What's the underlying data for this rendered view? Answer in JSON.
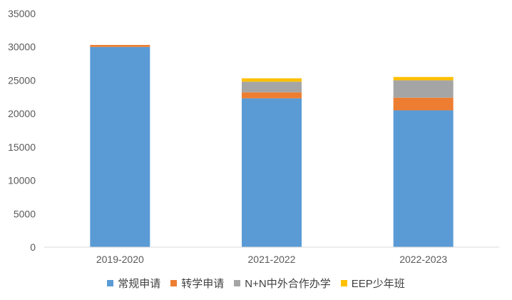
{
  "chart_data": {
    "type": "bar",
    "stacked": true,
    "categories": [
      "2019-2020",
      "2021-2022",
      "2022-2023"
    ],
    "series": [
      {
        "name": "常规申请",
        "color": "#5B9BD5",
        "values": [
          30000,
          22300,
          20500
        ]
      },
      {
        "name": "转学申请",
        "color": "#ED7D31",
        "values": [
          300,
          900,
          1900
        ]
      },
      {
        "name": "N+N中外合作办学",
        "color": "#A5A5A5",
        "values": [
          0,
          1600,
          2600
        ]
      },
      {
        "name": "EEP少年班",
        "color": "#FFC000",
        "values": [
          0,
          500,
          500
        ]
      }
    ],
    "ylim": [
      0,
      35000
    ],
    "yticks": [
      0,
      5000,
      10000,
      15000,
      20000,
      25000,
      30000,
      35000
    ],
    "grid": false,
    "legend_position": "bottom",
    "title": "",
    "xlabel": "",
    "ylabel": ""
  }
}
